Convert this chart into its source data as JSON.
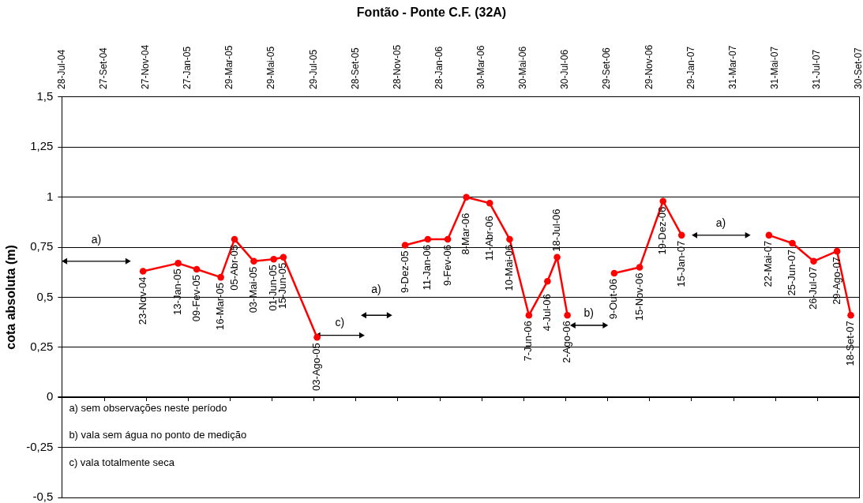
{
  "chart_data": {
    "type": "line",
    "title": "Fontão - Ponte C.F. (32A)",
    "ylabel": "cota absoluta (m)",
    "xlim": [
      "2004-07-28",
      "2007-09-30"
    ],
    "xticks": [
      {
        "value": "2004-07-28",
        "label": "28-Jul-04"
      },
      {
        "value": "2004-09-27",
        "label": "27-Set-04"
      },
      {
        "value": "2004-11-27",
        "label": "27-Nov-04"
      },
      {
        "value": "2005-01-27",
        "label": "27-Jan-05"
      },
      {
        "value": "2005-03-29",
        "label": "29-Mar-05"
      },
      {
        "value": "2005-05-29",
        "label": "29-Mai-05"
      },
      {
        "value": "2005-07-29",
        "label": "29-Jul-05"
      },
      {
        "value": "2005-09-28",
        "label": "28-Set-05"
      },
      {
        "value": "2005-11-28",
        "label": "28-Nov-05"
      },
      {
        "value": "2006-01-28",
        "label": "28-Jan-06"
      },
      {
        "value": "2006-03-30",
        "label": "30-Mar-06"
      },
      {
        "value": "2006-05-30",
        "label": "30-Mai-06"
      },
      {
        "value": "2006-07-30",
        "label": "30-Jul-06"
      },
      {
        "value": "2006-09-29",
        "label": "29-Set-06"
      },
      {
        "value": "2006-11-29",
        "label": "29-Nov-06"
      },
      {
        "value": "2007-01-29",
        "label": "29-Jan-07"
      },
      {
        "value": "2007-03-31",
        "label": "31-Mar-07"
      },
      {
        "value": "2007-05-31",
        "label": "31-Mai-07"
      },
      {
        "value": "2007-07-31",
        "label": "31-Jul-07"
      },
      {
        "value": "2007-09-30",
        "label": "30-Set-07"
      }
    ],
    "ylim": [
      -0.5,
      1.5
    ],
    "yticks": [
      {
        "value": -0.5,
        "label": "-0,5"
      },
      {
        "value": -0.25,
        "label": "-0,25"
      },
      0,
      {
        "value": 0.25,
        "label": "0,25"
      },
      {
        "value": 0.5,
        "label": "0,5"
      },
      {
        "value": 0.75,
        "label": "0,75"
      },
      1,
      {
        "value": 1.25,
        "label": "1,25"
      },
      {
        "value": 1.5,
        "label": "1,5"
      }
    ],
    "grid": "y",
    "marker": "circle",
    "series": [
      {
        "color": "#ff0000",
        "x": [
          "2004-11-23",
          "2005-01-13",
          "2005-02-09",
          "2005-03-16",
          "2005-04-05",
          "2005-05-03",
          "2005-06-01",
          "2005-06-15",
          "2005-08-03"
        ],
        "values": [
          0.63,
          0.67,
          0.64,
          0.6,
          0.79,
          0.68,
          0.69,
          0.7,
          0.3
        ],
        "value_labels": [
          "23-Nov-04",
          "13-Jan-05",
          "09-Fev-05",
          "16-Mar-05",
          "05-Abr-05",
          "03-Mai-05",
          "01-Jun-05",
          "15-Jun-05",
          "03-Ago-05"
        ]
      },
      {
        "color": "#ff0000",
        "x": [
          "2005-12-09",
          "2006-01-11",
          "2006-02-09",
          "2006-03-08",
          "2006-04-11",
          "2006-05-10",
          "2006-06-07",
          "2006-07-04",
          "2006-07-18",
          "2006-08-02"
        ],
        "values": [
          0.76,
          0.79,
          0.79,
          1.0,
          0.97,
          0.79,
          0.41,
          0.58,
          0.7,
          0.41
        ],
        "value_labels": [
          "9-Dez-05",
          "11-Jan-06",
          "9-Fev-06",
          "8-Mar-06",
          "11-Abr-06",
          "10-Mai-06",
          "7-Jun-06",
          "4-Jul-06",
          "18-Jul-06",
          "2-Ago-06"
        ]
      },
      {
        "color": "#ff0000",
        "x": [
          "2006-10-09",
          "2006-11-15",
          "2006-12-19",
          "2007-01-15"
        ],
        "values": [
          0.62,
          0.65,
          0.98,
          0.81
        ],
        "value_labels": [
          "9-Out-06",
          "15-Nov-06",
          "19-Dez-06",
          "15-Jan-07"
        ]
      },
      {
        "color": "#ff0000",
        "x": [
          "2007-05-22",
          "2007-06-25",
          "2007-07-26",
          "2007-08-29",
          "2007-09-18"
        ],
        "values": [
          0.81,
          0.77,
          0.68,
          0.73,
          0.41
        ],
        "value_labels": [
          "22-Mai-07",
          "25-Jun-07",
          "26-Jul-07",
          "29-Ago-07",
          "18-Set-07"
        ]
      },
      {
        "color": "#000000",
        "marker": "triangle",
        "x": [
          "2004-08-02",
          "2004-10-31"
        ],
        "values": [
          0.68,
          0.68
        ]
      },
      {
        "color": "#000000",
        "marker": "triangle",
        "x": [
          "2005-08-05",
          "2005-10-06"
        ],
        "values": [
          0.31,
          0.31
        ]
      },
      {
        "color": "#000000",
        "marker": "triangle",
        "x": [
          "2005-10-11",
          "2005-11-15"
        ],
        "values": [
          0.41,
          0.41
        ]
      },
      {
        "color": "#000000",
        "marker": "triangle",
        "x": [
          "2006-08-11",
          "2006-09-25"
        ],
        "values": [
          0.36,
          0.36
        ]
      },
      {
        "color": "#000000",
        "marker": "triangle",
        "x": [
          "2007-02-04",
          "2007-04-20"
        ],
        "values": [
          0.81,
          0.81
        ]
      }
    ],
    "annotations": [
      {
        "text": "a)",
        "x": "2004-09-16",
        "y": 0.68
      },
      {
        "text": "c)",
        "x": "2005-09-05",
        "y": 0.31
      },
      {
        "text": "a)",
        "x": "2005-10-28",
        "y": 0.41
      },
      {
        "text": "b)",
        "x": "2006-09-02",
        "y": 0.36
      },
      {
        "text": "a)",
        "x": "2007-03-13",
        "y": 0.81
      },
      "a) sem observações neste período",
      "b) vala sem água no ponto de medição",
      "c) vala totalmente seca"
    ]
  }
}
